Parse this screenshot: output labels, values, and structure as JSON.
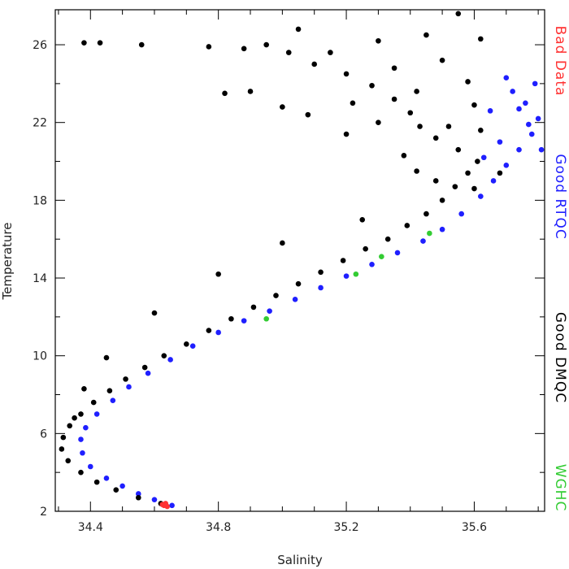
{
  "chart_data": {
    "type": "scatter",
    "title": "",
    "xlabel": "Salinity",
    "ylabel": "Temperature",
    "xlim": [
      34.29,
      35.82
    ],
    "ylim": [
      2,
      27.8
    ],
    "x_ticks": [
      "34.4",
      "34.8",
      "35.2",
      "35.6"
    ],
    "y_ticks": [
      "2",
      "6",
      "10",
      "14",
      "18",
      "22",
      "26"
    ],
    "grid": false,
    "legend_placement": "right, rotated vertical text",
    "series": [
      {
        "name": "Bad Data",
        "color": "#ff3333",
        "points": [
          [
            34.63,
            2.3
          ],
          [
            34.64,
            2.25
          ],
          [
            34.625,
            2.35
          ],
          [
            34.635,
            2.4
          ]
        ]
      },
      {
        "name": "Good RTQC",
        "color": "#1f1fff",
        "points": [
          [
            34.655,
            2.3
          ],
          [
            34.6,
            2.6
          ],
          [
            34.55,
            2.9
          ],
          [
            34.5,
            3.3
          ],
          [
            34.45,
            3.7
          ],
          [
            34.4,
            4.3
          ],
          [
            34.375,
            5.0
          ],
          [
            34.37,
            5.7
          ],
          [
            34.385,
            6.3
          ],
          [
            34.42,
            7.0
          ],
          [
            34.47,
            7.7
          ],
          [
            34.52,
            8.4
          ],
          [
            34.58,
            9.1
          ],
          [
            34.65,
            9.8
          ],
          [
            34.72,
            10.5
          ],
          [
            34.8,
            11.2
          ],
          [
            34.88,
            11.8
          ],
          [
            34.96,
            12.3
          ],
          [
            35.04,
            12.9
          ],
          [
            35.12,
            13.5
          ],
          [
            35.2,
            14.1
          ],
          [
            35.28,
            14.7
          ],
          [
            35.36,
            15.3
          ],
          [
            35.44,
            15.9
          ],
          [
            35.5,
            16.5
          ],
          [
            35.56,
            17.3
          ],
          [
            35.62,
            18.2
          ],
          [
            35.66,
            19.0
          ],
          [
            35.7,
            19.8
          ],
          [
            35.74,
            20.6
          ],
          [
            35.78,
            21.4
          ],
          [
            35.8,
            22.2
          ],
          [
            35.76,
            23.0
          ],
          [
            35.72,
            23.6
          ],
          [
            35.79,
            24.0
          ],
          [
            35.74,
            22.7
          ],
          [
            35.68,
            21.0
          ],
          [
            35.81,
            20.6
          ],
          [
            35.63,
            20.2
          ],
          [
            35.7,
            24.3
          ],
          [
            35.77,
            21.9
          ],
          [
            35.65,
            22.6
          ]
        ]
      },
      {
        "name": "Good DMQC",
        "color": "#000000",
        "points": [
          [
            34.62,
            2.4
          ],
          [
            34.55,
            2.7
          ],
          [
            34.48,
            3.1
          ],
          [
            34.42,
            3.5
          ],
          [
            34.37,
            4.0
          ],
          [
            34.33,
            4.6
          ],
          [
            34.31,
            5.2
          ],
          [
            34.315,
            5.8
          ],
          [
            34.335,
            6.4
          ],
          [
            34.37,
            7.0
          ],
          [
            34.41,
            7.6
          ],
          [
            34.46,
            8.2
          ],
          [
            34.51,
            8.8
          ],
          [
            34.57,
            9.4
          ],
          [
            34.63,
            10.0
          ],
          [
            34.7,
            10.6
          ],
          [
            34.77,
            11.3
          ],
          [
            34.84,
            11.9
          ],
          [
            34.91,
            12.5
          ],
          [
            34.98,
            13.1
          ],
          [
            35.05,
            13.7
          ],
          [
            35.12,
            14.3
          ],
          [
            35.19,
            14.9
          ],
          [
            35.26,
            15.5
          ],
          [
            35.33,
            16.0
          ],
          [
            35.39,
            16.7
          ],
          [
            35.45,
            17.3
          ],
          [
            35.5,
            18.0
          ],
          [
            35.54,
            18.7
          ],
          [
            35.58,
            19.4
          ],
          [
            35.61,
            20.0
          ],
          [
            35.55,
            20.6
          ],
          [
            35.48,
            21.2
          ],
          [
            35.43,
            21.8
          ],
          [
            35.4,
            22.5
          ],
          [
            35.35,
            23.2
          ],
          [
            35.28,
            23.9
          ],
          [
            35.2,
            24.5
          ],
          [
            35.1,
            25.0
          ],
          [
            35.02,
            25.6
          ],
          [
            34.95,
            26.0
          ],
          [
            35.05,
            26.8
          ],
          [
            35.3,
            26.2
          ],
          [
            35.45,
            26.5
          ],
          [
            35.55,
            27.6
          ],
          [
            35.62,
            26.3
          ],
          [
            35.5,
            25.2
          ],
          [
            35.58,
            24.1
          ],
          [
            35.35,
            24.8
          ],
          [
            35.15,
            25.6
          ],
          [
            34.88,
            25.8
          ],
          [
            34.9,
            23.6
          ],
          [
            35.0,
            22.8
          ],
          [
            35.08,
            22.4
          ],
          [
            34.77,
            25.9
          ],
          [
            34.56,
            26.0
          ],
          [
            34.43,
            26.1
          ],
          [
            34.38,
            26.1
          ],
          [
            34.82,
            23.5
          ],
          [
            35.22,
            23.0
          ],
          [
            35.3,
            22.0
          ],
          [
            35.6,
            22.9
          ],
          [
            35.25,
            17.0
          ],
          [
            35.0,
            15.8
          ],
          [
            34.8,
            14.2
          ],
          [
            34.6,
            12.2
          ],
          [
            34.45,
            9.9
          ],
          [
            34.38,
            8.3
          ],
          [
            34.35,
            6.8
          ],
          [
            35.42,
            19.5
          ],
          [
            35.38,
            20.3
          ],
          [
            35.48,
            19.0
          ],
          [
            35.6,
            18.6
          ],
          [
            35.68,
            19.4
          ],
          [
            35.52,
            21.8
          ],
          [
            35.42,
            23.6
          ],
          [
            35.62,
            21.6
          ],
          [
            35.2,
            21.4
          ]
        ]
      },
      {
        "name": "WGHC",
        "color": "#33cc33",
        "points": [
          [
            34.95,
            11.9
          ],
          [
            35.23,
            14.2
          ],
          [
            35.31,
            15.1
          ],
          [
            35.46,
            16.3
          ]
        ]
      }
    ],
    "legend_order": [
      "Bad Data",
      "Good RTQC",
      "Good DMQC",
      "WGHC"
    ]
  }
}
